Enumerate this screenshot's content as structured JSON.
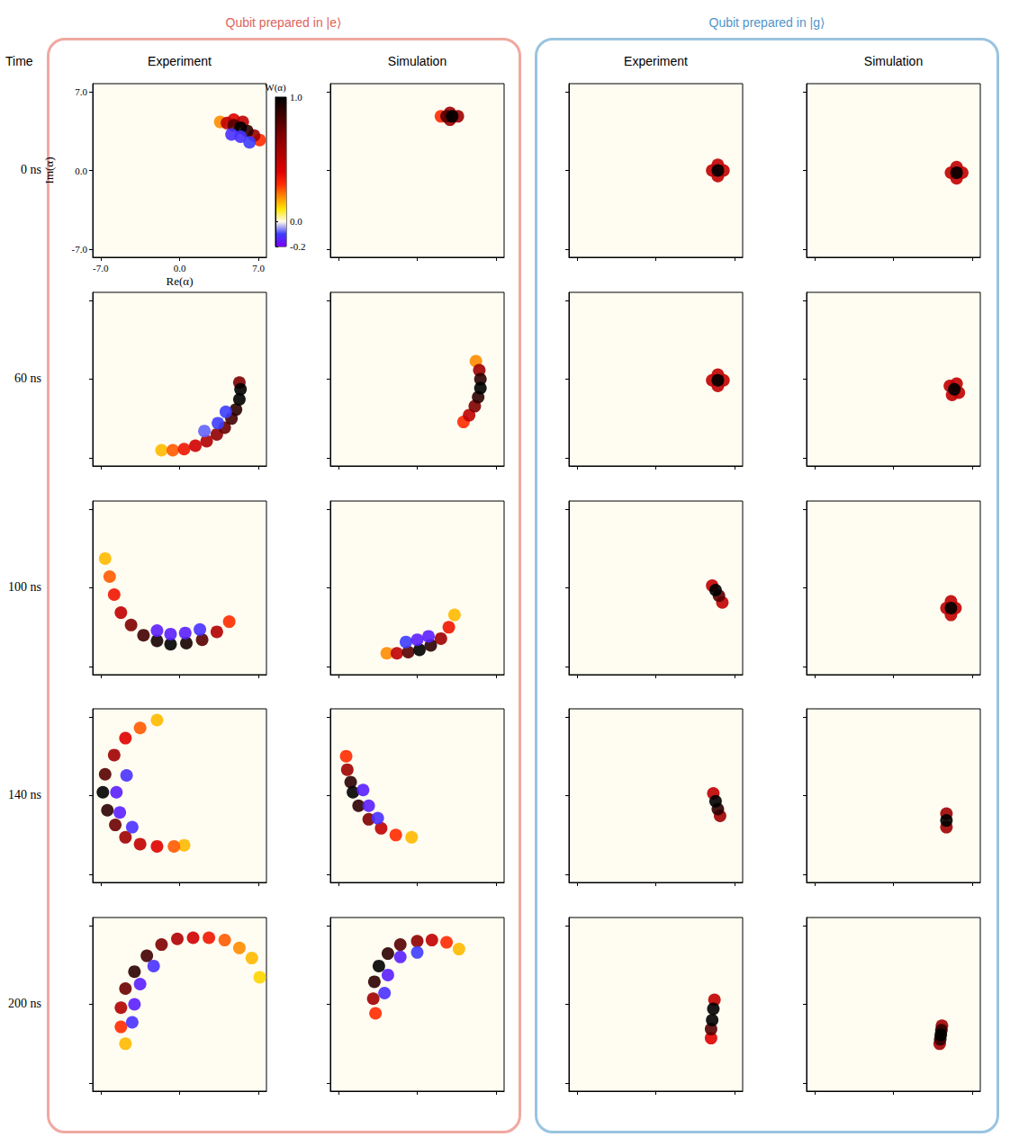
{
  "groups": [
    {
      "title": "Qubit prepared in |e⟩",
      "columns": [
        "Experiment",
        "Simulation"
      ]
    },
    {
      "title": "Qubit prepared in |g⟩",
      "columns": [
        "Experiment",
        "Simulation"
      ]
    }
  ],
  "row_header": "Time",
  "rows": [
    "0 ns",
    "60 ns",
    "100 ns",
    "140 ns",
    "200 ns"
  ],
  "colorbar": {
    "label": "W(α)",
    "range": [
      -0.2,
      1.0
    ],
    "ticks": [
      {
        "value": 1,
        "label": "1.0"
      },
      {
        "value": 0,
        "label": "0.0"
      },
      -0.2
    ]
  },
  "chart_data": [
    {
      "type": "scatter",
      "xlabel": "Re(α)",
      "ylabel": "Im(α)",
      "xlim": [
        -7.7,
        7.7
      ],
      "ylim": [
        -7.7,
        7.7
      ],
      "xticks": [
        {
          "value": -7,
          "label": "-7.0"
        },
        {
          "value": 0,
          "label": "0.0"
        },
        {
          "value": 7,
          "label": "7.0"
        }
      ],
      "yticks": [
        {
          "value": -7,
          "label": "-7.0"
        },
        {
          "value": 0,
          "label": "0.0"
        },
        {
          "value": 7,
          "label": "7.0"
        }
      ],
      "points": [
        [
          3.6,
          4.3,
          0.2
        ],
        [
          7.1,
          2.7,
          0.3
        ],
        [
          4.8,
          4.5,
          0.4
        ],
        [
          5.6,
          4.3,
          0.5
        ],
        [
          4.2,
          4.2,
          0.5
        ],
        [
          6.6,
          3.1,
          0.6
        ],
        [
          4.8,
          4.0,
          0.8
        ],
        [
          6.0,
          3.5,
          0.9
        ],
        [
          5.4,
          3.8,
          1.0
        ],
        [
          4.6,
          3.2,
          -0.12
        ],
        [
          5.4,
          3.0,
          -0.12
        ],
        [
          6.2,
          2.5,
          -0.1
        ]
      ]
    },
    {
      "type": "scatter",
      "xlim": [
        -7.7,
        7.7
      ],
      "ylim": [
        -7.7,
        7.7
      ],
      "xticks": [
        -7,
        0,
        7
      ],
      "yticks": [
        -7,
        0,
        7
      ],
      "tick_labels": false,
      "points": [
        [
          2.1,
          4.8,
          0.3
        ],
        [
          2.9,
          5.1,
          0.6
        ],
        [
          2.9,
          4.5,
          0.6
        ],
        [
          3.6,
          4.8,
          0.6
        ],
        [
          2.6,
          4.8,
          0.8
        ],
        [
          3.1,
          4.8,
          1.0
        ]
      ]
    },
    {
      "type": "scatter",
      "xlim": [
        -7.7,
        7.7
      ],
      "ylim": [
        -7.7,
        7.7
      ],
      "xticks": [
        -7,
        0,
        7
      ],
      "yticks": [
        -7,
        0,
        7
      ],
      "tick_labels": false,
      "points": [
        [
          5.0,
          0.0,
          0.5
        ],
        [
          6.0,
          0.0,
          0.5
        ],
        [
          5.5,
          0.5,
          0.5
        ],
        [
          5.5,
          -0.5,
          0.5
        ],
        [
          5.5,
          0.0,
          1.0
        ]
      ]
    },
    {
      "type": "scatter",
      "xlim": [
        -7.7,
        7.7
      ],
      "ylim": [
        -7.7,
        7.7
      ],
      "xticks": [
        -7,
        0,
        7
      ],
      "yticks": [
        -7,
        0,
        7
      ],
      "tick_labels": false,
      "points": [
        [
          5.1,
          -0.2,
          0.5
        ],
        [
          6.1,
          -0.2,
          0.5
        ],
        [
          5.6,
          0.3,
          0.5
        ],
        [
          5.6,
          -0.7,
          0.5
        ],
        [
          5.6,
          -0.2,
          1.0
        ]
      ]
    },
    {
      "type": "scatter",
      "xlim": [
        -7.7,
        7.7
      ],
      "ylim": [
        -7.7,
        7.7
      ],
      "xticks": [
        -7,
        0,
        7
      ],
      "yticks": [
        -7,
        0,
        7
      ],
      "tick_labels": false,
      "points": [
        [
          -1.6,
          -6.3,
          0.15
        ],
        [
          -0.6,
          -6.3,
          0.25
        ],
        [
          0.4,
          -6.2,
          0.35
        ],
        [
          1.4,
          -5.9,
          0.45
        ],
        [
          2.4,
          -5.5,
          0.55
        ],
        [
          3.3,
          -4.9,
          0.65
        ],
        [
          4.0,
          -4.3,
          0.75
        ],
        [
          4.6,
          -3.5,
          0.85
        ],
        [
          5.0,
          -2.7,
          0.9
        ],
        [
          5.3,
          -0.3,
          0.7
        ],
        [
          5.3,
          -1.8,
          1.0
        ],
        [
          5.4,
          -0.9,
          1.0
        ],
        [
          2.2,
          -4.6,
          -0.08
        ],
        [
          3.4,
          -3.9,
          -0.1
        ],
        [
          4.1,
          -2.9,
          -0.1
        ]
      ]
    },
    {
      "type": "scatter",
      "xlim": [
        -7.7,
        7.7
      ],
      "ylim": [
        -7.7,
        7.7
      ],
      "xticks": [
        -7,
        0,
        7
      ],
      "yticks": [
        -7,
        0,
        7
      ],
      "tick_labels": false,
      "points": [
        [
          5.2,
          1.6,
          0.2
        ],
        [
          4.1,
          -3.8,
          0.3
        ],
        [
          4.6,
          -3.2,
          0.5
        ],
        [
          5.5,
          0.8,
          0.6
        ],
        [
          5.1,
          -2.4,
          0.7
        ],
        [
          5.4,
          -1.6,
          0.9
        ],
        [
          5.6,
          0.0,
          0.9
        ],
        [
          5.6,
          -0.8,
          1.0
        ]
      ]
    },
    {
      "type": "scatter",
      "xlim": [
        -7.7,
        7.7
      ],
      "ylim": [
        -7.7,
        7.7
      ],
      "xticks": [
        -7,
        0,
        7
      ],
      "yticks": [
        -7,
        0,
        7
      ],
      "tick_labels": false,
      "points": [
        [
          5.0,
          -0.1,
          0.5
        ],
        [
          6.0,
          -0.1,
          0.5
        ],
        [
          5.5,
          0.4,
          0.5
        ],
        [
          5.5,
          -0.6,
          0.5
        ],
        [
          5.5,
          -0.1,
          1.0
        ]
      ]
    },
    {
      "type": "scatter",
      "xlim": [
        -7.7,
        7.7
      ],
      "ylim": [
        -7.7,
        7.7
      ],
      "xticks": [
        -7,
        0,
        7
      ],
      "yticks": [
        -7,
        0,
        7
      ],
      "tick_labels": false,
      "points": [
        [
          5.0,
          -0.6,
          0.5
        ],
        [
          5.8,
          -1.2,
          0.5
        ],
        [
          5.6,
          -0.4,
          0.5
        ],
        [
          5.2,
          -1.4,
          0.5
        ],
        [
          5.4,
          -0.9,
          1.0
        ]
      ]
    },
    {
      "type": "scatter",
      "xlim": [
        -7.7,
        7.7
      ],
      "ylim": [
        -7.7,
        7.7
      ],
      "xticks": [
        -7,
        0,
        7
      ],
      "yticks": [
        -7,
        0,
        7
      ],
      "tick_labels": false,
      "points": [
        [
          -6.6,
          2.6,
          0.15
        ],
        [
          -6.2,
          1.0,
          0.25
        ],
        [
          -5.8,
          -0.6,
          0.35
        ],
        [
          -5.2,
          -2.2,
          0.5
        ],
        [
          4.4,
          -3.0,
          0.3
        ],
        [
          3.3,
          -3.9,
          0.55
        ],
        [
          -4.3,
          -3.3,
          0.7
        ],
        [
          2.0,
          -4.6,
          0.8
        ],
        [
          -3.2,
          -4.2,
          0.85
        ],
        [
          -2.0,
          -4.7,
          0.95
        ],
        [
          0.6,
          -4.9,
          0.95
        ],
        [
          -0.8,
          -5.0,
          1.0
        ],
        [
          -2.0,
          -3.8,
          -0.15
        ],
        [
          -0.8,
          -4.1,
          -0.15
        ],
        [
          0.5,
          -4.0,
          -0.15
        ],
        [
          1.8,
          -3.7,
          -0.12
        ]
      ]
    },
    {
      "type": "scatter",
      "xlim": [
        -7.7,
        7.7
      ],
      "ylim": [
        -7.7,
        7.7
      ],
      "xticks": [
        -7,
        0,
        7
      ],
      "yticks": [
        -7,
        0,
        7
      ],
      "tick_labels": false,
      "points": [
        [
          3.3,
          -2.4,
          0.15
        ],
        [
          -2.7,
          -5.8,
          0.2
        ],
        [
          2.8,
          -3.5,
          0.35
        ],
        [
          -1.8,
          -5.8,
          0.5
        ],
        [
          2.1,
          -4.5,
          0.6
        ],
        [
          -0.8,
          -5.7,
          0.8
        ],
        [
          1.2,
          -5.1,
          0.9
        ],
        [
          0.2,
          -5.5,
          1.0
        ],
        [
          -1.0,
          -4.8,
          -0.1
        ],
        [
          0.0,
          -4.6,
          -0.15
        ],
        [
          1.0,
          -4.3,
          -0.15
        ]
      ]
    },
    {
      "type": "scatter",
      "xlim": [
        -7.7,
        7.7
      ],
      "ylim": [
        -7.7,
        7.7
      ],
      "xticks": [
        -7,
        0,
        7
      ],
      "yticks": [
        -7,
        0,
        7
      ],
      "tick_labels": false,
      "points": [
        [
          5.9,
          -1.3,
          0.5
        ],
        [
          5.0,
          0.2,
          0.5
        ],
        [
          5.6,
          -0.7,
          0.8
        ],
        [
          5.3,
          -0.2,
          1.0
        ]
      ]
    },
    {
      "type": "scatter",
      "xlim": [
        -7.7,
        7.7
      ],
      "ylim": [
        -7.7,
        7.7
      ],
      "xticks": [
        -7,
        0,
        7
      ],
      "yticks": [
        -7,
        0,
        7
      ],
      "tick_labels": false,
      "points": [
        [
          5.1,
          -1.2,
          0.5
        ],
        [
          5.1,
          -2.4,
          0.5
        ],
        [
          4.7,
          -1.8,
          0.5
        ],
        [
          5.5,
          -1.8,
          0.5
        ],
        [
          5.1,
          -1.8,
          1.0
        ]
      ]
    },
    {
      "type": "scatter",
      "xlim": [
        -7.7,
        7.7
      ],
      "ylim": [
        -7.7,
        7.7
      ],
      "xticks": [
        -7,
        0,
        7
      ],
      "yticks": [
        -7,
        0,
        7
      ],
      "tick_labels": false,
      "points": [
        [
          -2.0,
          6.7,
          0.15
        ],
        [
          0.4,
          -4.4,
          0.15
        ],
        [
          -3.5,
          6.0,
          0.25
        ],
        [
          -0.5,
          -4.5,
          0.25
        ],
        [
          -4.8,
          5.1,
          0.4
        ],
        [
          -2.0,
          -4.5,
          0.4
        ],
        [
          -3.5,
          -4.3,
          0.5
        ],
        [
          -5.8,
          3.6,
          0.6
        ],
        [
          -4.8,
          -3.7,
          0.6
        ],
        [
          -5.7,
          -2.6,
          0.75
        ],
        [
          -6.6,
          1.9,
          0.8
        ],
        [
          -6.4,
          -1.3,
          0.9
        ],
        [
          -6.8,
          0.3,
          1.0
        ],
        [
          -5.6,
          0.3,
          -0.15
        ],
        [
          -5.3,
          -1.5,
          -0.15
        ],
        [
          -4.7,
          1.8,
          -0.12
        ],
        [
          -4.2,
          -2.8,
          -0.12
        ]
      ]
    },
    {
      "type": "scatter",
      "xlim": [
        -7.7,
        7.7
      ],
      "ylim": [
        -7.7,
        7.7
      ],
      "xticks": [
        -7,
        0,
        7
      ],
      "yticks": [
        -7,
        0,
        7
      ],
      "tick_labels": false,
      "points": [
        [
          -0.5,
          -3.7,
          0.15
        ],
        [
          -6.3,
          3.5,
          0.3
        ],
        [
          -1.9,
          -3.5,
          0.3
        ],
        [
          -3.2,
          -2.9,
          0.5
        ],
        [
          -6.2,
          2.3,
          0.6
        ],
        [
          -4.3,
          -2.1,
          0.7
        ],
        [
          -5.9,
          1.2,
          0.9
        ],
        [
          -5.2,
          -0.9,
          0.9
        ],
        [
          -5.7,
          0.3,
          1.0
        ],
        [
          -4.8,
          0.5,
          -0.15
        ],
        [
          -4.3,
          -0.9,
          -0.15
        ],
        [
          -3.5,
          -2.0,
          -0.12
        ]
      ]
    },
    {
      "type": "scatter",
      "xlim": [
        -7.7,
        7.7
      ],
      "ylim": [
        -7.7,
        7.7
      ],
      "xticks": [
        -7,
        0,
        7
      ],
      "yticks": [
        -7,
        0,
        7
      ],
      "tick_labels": false,
      "points": [
        [
          5.1,
          0.2,
          0.5
        ],
        [
          5.7,
          -1.8,
          0.6
        ],
        [
          5.5,
          -1.2,
          0.9
        ],
        [
          5.3,
          -0.5,
          1.0
        ]
      ]
    },
    {
      "type": "scatter",
      "xlim": [
        -7.7,
        7.7
      ],
      "ylim": [
        -7.7,
        7.7
      ],
      "xticks": [
        -7,
        0,
        7
      ],
      "yticks": [
        -7,
        0,
        7
      ],
      "tick_labels": false,
      "points": [
        [
          4.7,
          -1.6,
          0.6
        ],
        [
          4.7,
          -2.8,
          0.6
        ],
        [
          4.7,
          -2.2,
          1.0
        ]
      ]
    },
    {
      "type": "scatter",
      "xlim": [
        -7.7,
        7.7
      ],
      "ylim": [
        -7.7,
        7.7
      ],
      "xticks": [
        -7,
        0,
        7
      ],
      "yticks": [
        -7,
        0,
        7
      ],
      "tick_labels": false,
      "points": [
        [
          7.1,
          2.4,
          0.12
        ],
        [
          6.4,
          4.1,
          0.15
        ],
        [
          -4.8,
          -3.5,
          0.15
        ],
        [
          5.3,
          5.0,
          0.2
        ],
        [
          4.0,
          5.7,
          0.25
        ],
        [
          -5.2,
          -2.0,
          0.3
        ],
        [
          2.6,
          5.9,
          0.35
        ],
        [
          1.2,
          5.9,
          0.45
        ],
        [
          -0.2,
          5.8,
          0.55
        ],
        [
          -5.2,
          -0.3,
          0.55
        ],
        [
          -1.6,
          5.3,
          0.7
        ],
        [
          -4.8,
          1.4,
          0.75
        ],
        [
          -2.9,
          4.3,
          0.85
        ],
        [
          -4.0,
          2.9,
          0.9
        ],
        [
          -4.0,
          0.0,
          -0.15
        ],
        [
          -3.5,
          1.8,
          -0.15
        ],
        [
          -2.3,
          3.4,
          -0.12
        ],
        [
          -4.2,
          -1.6,
          -0.12
        ]
      ]
    },
    {
      "type": "scatter",
      "xlim": [
        -7.7,
        7.7
      ],
      "ylim": [
        -7.7,
        7.7
      ],
      "xticks": [
        -7,
        0,
        7
      ],
      "yticks": [
        -7,
        0,
        7
      ],
      "tick_labels": false,
      "points": [
        [
          3.7,
          4.9,
          0.15
        ],
        [
          2.6,
          5.5,
          0.3
        ],
        [
          -3.7,
          -0.8,
          0.3
        ],
        [
          1.3,
          5.7,
          0.5
        ],
        [
          -3.9,
          0.5,
          0.6
        ],
        [
          0.0,
          5.6,
          0.65
        ],
        [
          -1.5,
          5.3,
          0.8
        ],
        [
          -3.8,
          2.0,
          0.9
        ],
        [
          -2.6,
          4.5,
          0.9
        ],
        [
          -3.4,
          3.4,
          1.0
        ],
        [
          -2.6,
          2.6,
          -0.15
        ],
        [
          -1.5,
          4.2,
          -0.15
        ],
        [
          -2.9,
          1.0,
          -0.12
        ],
        [
          0.0,
          4.6,
          -0.1
        ]
      ]
    },
    {
      "type": "scatter",
      "xlim": [
        -7.7,
        7.7
      ],
      "ylim": [
        -7.7,
        7.7
      ],
      "xticks": [
        -7,
        0,
        7
      ],
      "yticks": [
        -7,
        0,
        7
      ],
      "tick_labels": false,
      "points": [
        [
          5.2,
          0.4,
          0.5
        ],
        [
          4.9,
          -3.0,
          0.4
        ],
        [
          4.9,
          -2.2,
          0.8
        ],
        [
          5.1,
          -0.4,
          1.0
        ],
        [
          5.0,
          -1.4,
          1.0
        ]
      ]
    },
    {
      "type": "scatter",
      "xlim": [
        -7.7,
        7.7
      ],
      "ylim": [
        -7.7,
        7.7
      ],
      "xticks": [
        -7,
        0,
        7
      ],
      "yticks": [
        -7,
        0,
        7
      ],
      "tick_labels": false,
      "points": [
        [
          4.3,
          -1.9,
          0.6
        ],
        [
          4.1,
          -3.5,
          0.6
        ],
        [
          4.25,
          -2.3,
          0.9
        ],
        [
          4.15,
          -3.1,
          0.9
        ],
        [
          4.2,
          -2.7,
          1.0
        ]
      ]
    }
  ]
}
